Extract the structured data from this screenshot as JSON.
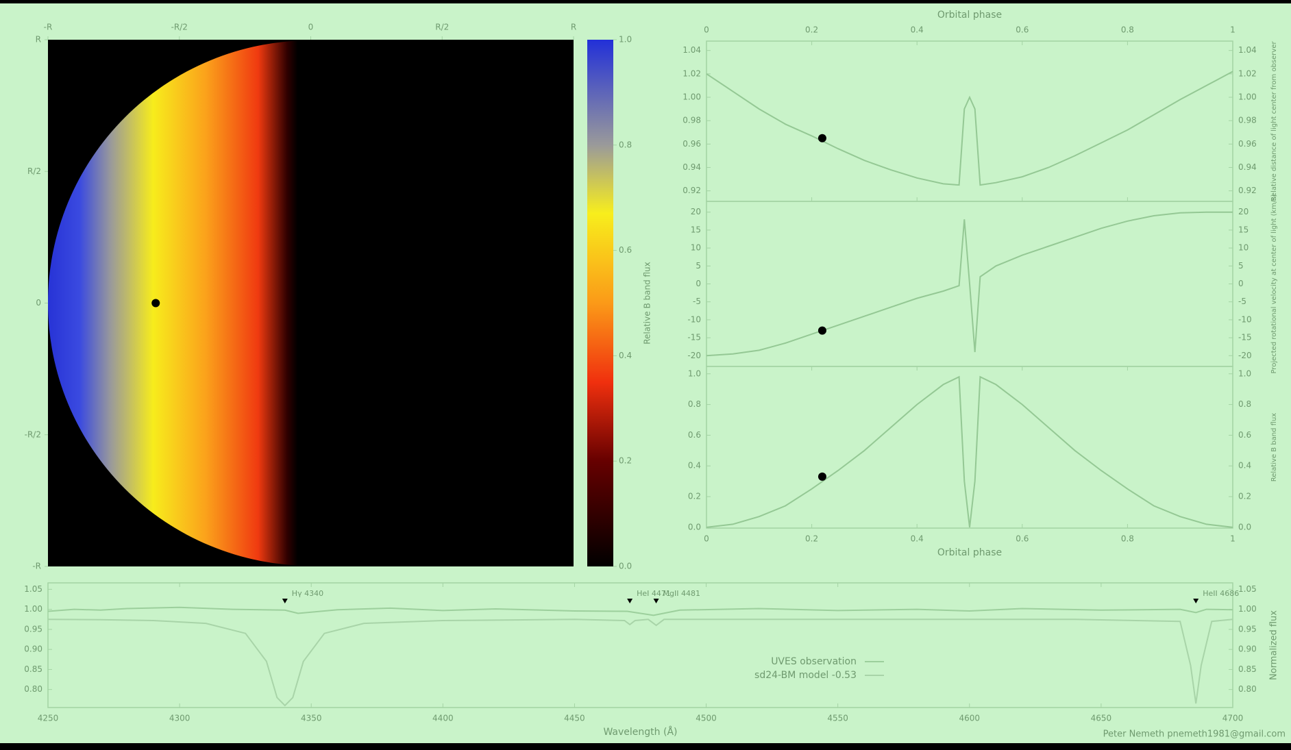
{
  "chart_data": [
    {
      "type": "image",
      "xlim": [
        -1,
        1
      ],
      "ylim": [
        -1,
        1
      ],
      "xticks": [
        {
          "value": -1,
          "label": "-R"
        },
        {
          "value": -0.5,
          "label": "-R/2"
        },
        0,
        {
          "value": 0.5,
          "label": "R/2"
        },
        {
          "value": 1,
          "label": "R"
        }
      ],
      "yticks": [
        {
          "value": -1,
          "label": "-R"
        },
        {
          "value": -0.5,
          "label": "-R/2"
        },
        0,
        {
          "value": 0.5,
          "label": "R/2"
        },
        {
          "value": 1,
          "label": "R"
        }
      ],
      "marker": {
        "x": -0.59,
        "y": 0
      },
      "colorbar": {
        "label": "Relative B band flux",
        "lim": [
          0,
          1
        ],
        "ticks": [
          {
            "value": 0,
            "label": "0.0"
          },
          0.2,
          0.4,
          0.6,
          0.8,
          {
            "value": 1,
            "label": "1.0"
          }
        ]
      }
    },
    {
      "type": "line",
      "xlabel": "Orbital phase",
      "xaxis": "top",
      "xlim": [
        0,
        1
      ],
      "xticks": [
        0,
        0.2,
        0.4,
        0.6,
        0.8,
        1
      ],
      "ylim": [
        0.911,
        1.048
      ],
      "yticks": [
        0.92,
        0.94,
        0.96,
        0.98,
        {
          "value": 1,
          "label": "1.00"
        },
        1.02,
        1.04
      ],
      "ylabel": "Relative distance of light center from observer",
      "series": [
        {
          "color": "#94c894",
          "x": [
            0,
            0.05,
            0.1,
            0.15,
            0.2,
            0.25,
            0.3,
            0.35,
            0.4,
            0.45,
            0.48,
            0.49,
            0.5,
            0.51,
            0.52,
            0.55,
            0.6,
            0.65,
            0.7,
            0.75,
            0.8,
            0.85,
            0.9,
            0.95,
            1
          ],
          "values": [
            1.02,
            1.005,
            0.99,
            0.977,
            0.967,
            0.956,
            0.946,
            0.938,
            0.931,
            0.926,
            0.925,
            0.99,
            1.0,
            0.99,
            0.925,
            0.927,
            0.932,
            0.94,
            0.95,
            0.961,
            0.972,
            0.985,
            0.998,
            1.01,
            1.022
          ]
        }
      ],
      "marker": {
        "x": 0.22,
        "y": 0.965
      }
    },
    {
      "type": "line",
      "xlim": [
        0,
        1
      ],
      "ylim": [
        -23,
        23
      ],
      "yticks": [
        -20,
        -15,
        -10,
        -5,
        0,
        5,
        10,
        15,
        20
      ],
      "ylabel": "Projected rotational velocity at center of light (km/s)",
      "series": [
        {
          "color": "#94c894",
          "x": [
            0,
            0.05,
            0.1,
            0.15,
            0.2,
            0.25,
            0.3,
            0.35,
            0.4,
            0.45,
            0.48,
            0.49,
            0.5,
            0.51,
            0.52,
            0.55,
            0.6,
            0.65,
            0.7,
            0.75,
            0.8,
            0.85,
            0.9,
            0.95,
            1
          ],
          "values": [
            -20,
            -19.5,
            -18.5,
            -16.5,
            -14,
            -11.5,
            -9,
            -6.5,
            -4,
            -2,
            -0.5,
            18,
            0,
            -19,
            2,
            5,
            8,
            10.5,
            13,
            15.5,
            17.5,
            19,
            19.8,
            20,
            20
          ]
        }
      ],
      "marker": {
        "x": 0.22,
        "y": -13
      }
    },
    {
      "type": "line",
      "xlabel": "Orbital phase",
      "xaxis": "bottom",
      "xlim": [
        0,
        1
      ],
      "xticks": [
        0,
        0.2,
        0.4,
        0.6,
        0.8,
        1
      ],
      "ylim": [
        -0.005,
        1.048
      ],
      "yticks": [
        {
          "value": 0,
          "label": "0.0"
        },
        0.2,
        0.4,
        0.6,
        0.8,
        {
          "value": 1,
          "label": "1.0"
        }
      ],
      "ylabel": "Relative B band flux",
      "series": [
        {
          "color": "#94c894",
          "x": [
            0,
            0.05,
            0.1,
            0.15,
            0.2,
            0.25,
            0.3,
            0.35,
            0.4,
            0.45,
            0.48,
            0.49,
            0.5,
            0.51,
            0.52,
            0.55,
            0.6,
            0.65,
            0.7,
            0.75,
            0.8,
            0.85,
            0.9,
            0.95,
            1
          ],
          "values": [
            0,
            0.02,
            0.07,
            0.14,
            0.25,
            0.37,
            0.5,
            0.65,
            0.8,
            0.93,
            0.98,
            0.3,
            0,
            0.3,
            0.98,
            0.93,
            0.8,
            0.65,
            0.5,
            0.37,
            0.25,
            0.14,
            0.07,
            0.02,
            0
          ]
        }
      ],
      "marker": {
        "x": 0.22,
        "y": 0.33
      }
    },
    {
      "type": "spectrum",
      "xlabel": "Wavelength (Å)",
      "ylabel": "Normalized flux",
      "xlim": [
        4250,
        4700
      ],
      "xticks": [
        4250,
        4300,
        4350,
        4400,
        4450,
        4500,
        4550,
        4600,
        4650,
        4700
      ],
      "ylim": [
        0.755,
        1.066
      ],
      "yticks": [
        0.8,
        0.85,
        0.9,
        0.95,
        1,
        1.05
      ],
      "ytick_labels": [
        "0.80",
        "0.85",
        "0.90",
        "0.95",
        "1.00",
        "1.05"
      ],
      "series": [
        {
          "name": "UVES observation",
          "color": "#9ccf9c",
          "x": [
            4250,
            4260,
            4270,
            4280,
            4300,
            4320,
            4340,
            4345,
            4360,
            4380,
            4400,
            4420,
            4450,
            4470,
            4480,
            4490,
            4520,
            4550,
            4580,
            4600,
            4620,
            4650,
            4680,
            4686,
            4690,
            4700
          ],
          "values": [
            0.995,
            1.0,
            0.998,
            1.002,
            1.005,
            1.0,
            0.998,
            0.99,
            0.999,
            1.003,
            0.997,
            1.001,
            0.996,
            0.995,
            0.985,
            0.998,
            1.002,
            0.997,
            1.0,
            0.996,
            1.002,
            0.998,
            1.0,
            0.992,
            1.0,
            0.999
          ]
        },
        {
          "name": "sd24-BM model -0.53",
          "color": "#a8d4a8",
          "x": [
            4250,
            4270,
            4290,
            4310,
            4325,
            4333,
            4337,
            4340,
            4343,
            4347,
            4355,
            4370,
            4400,
            4450,
            4469,
            4471,
            4473,
            4478,
            4481,
            4484,
            4520,
            4580,
            4640,
            4680,
            4684,
            4686,
            4688,
            4692,
            4700
          ],
          "values": [
            0.975,
            0.974,
            0.972,
            0.965,
            0.94,
            0.87,
            0.78,
            0.76,
            0.78,
            0.87,
            0.94,
            0.965,
            0.972,
            0.975,
            0.972,
            0.962,
            0.972,
            0.975,
            0.96,
            0.975,
            0.975,
            0.975,
            0.975,
            0.97,
            0.86,
            0.765,
            0.86,
            0.97,
            0.975
          ]
        }
      ],
      "annotations": [
        {
          "text": "Hγ 4340",
          "x": 4340
        },
        {
          "text": "HeI 4471",
          "x": 4471
        },
        {
          "text": "MgII 4481",
          "x": 4481
        },
        {
          "text": "HeII 4686",
          "x": 4686
        }
      ],
      "credit": "Peter Nemeth  pnemeth1981@gmail.com"
    }
  ]
}
